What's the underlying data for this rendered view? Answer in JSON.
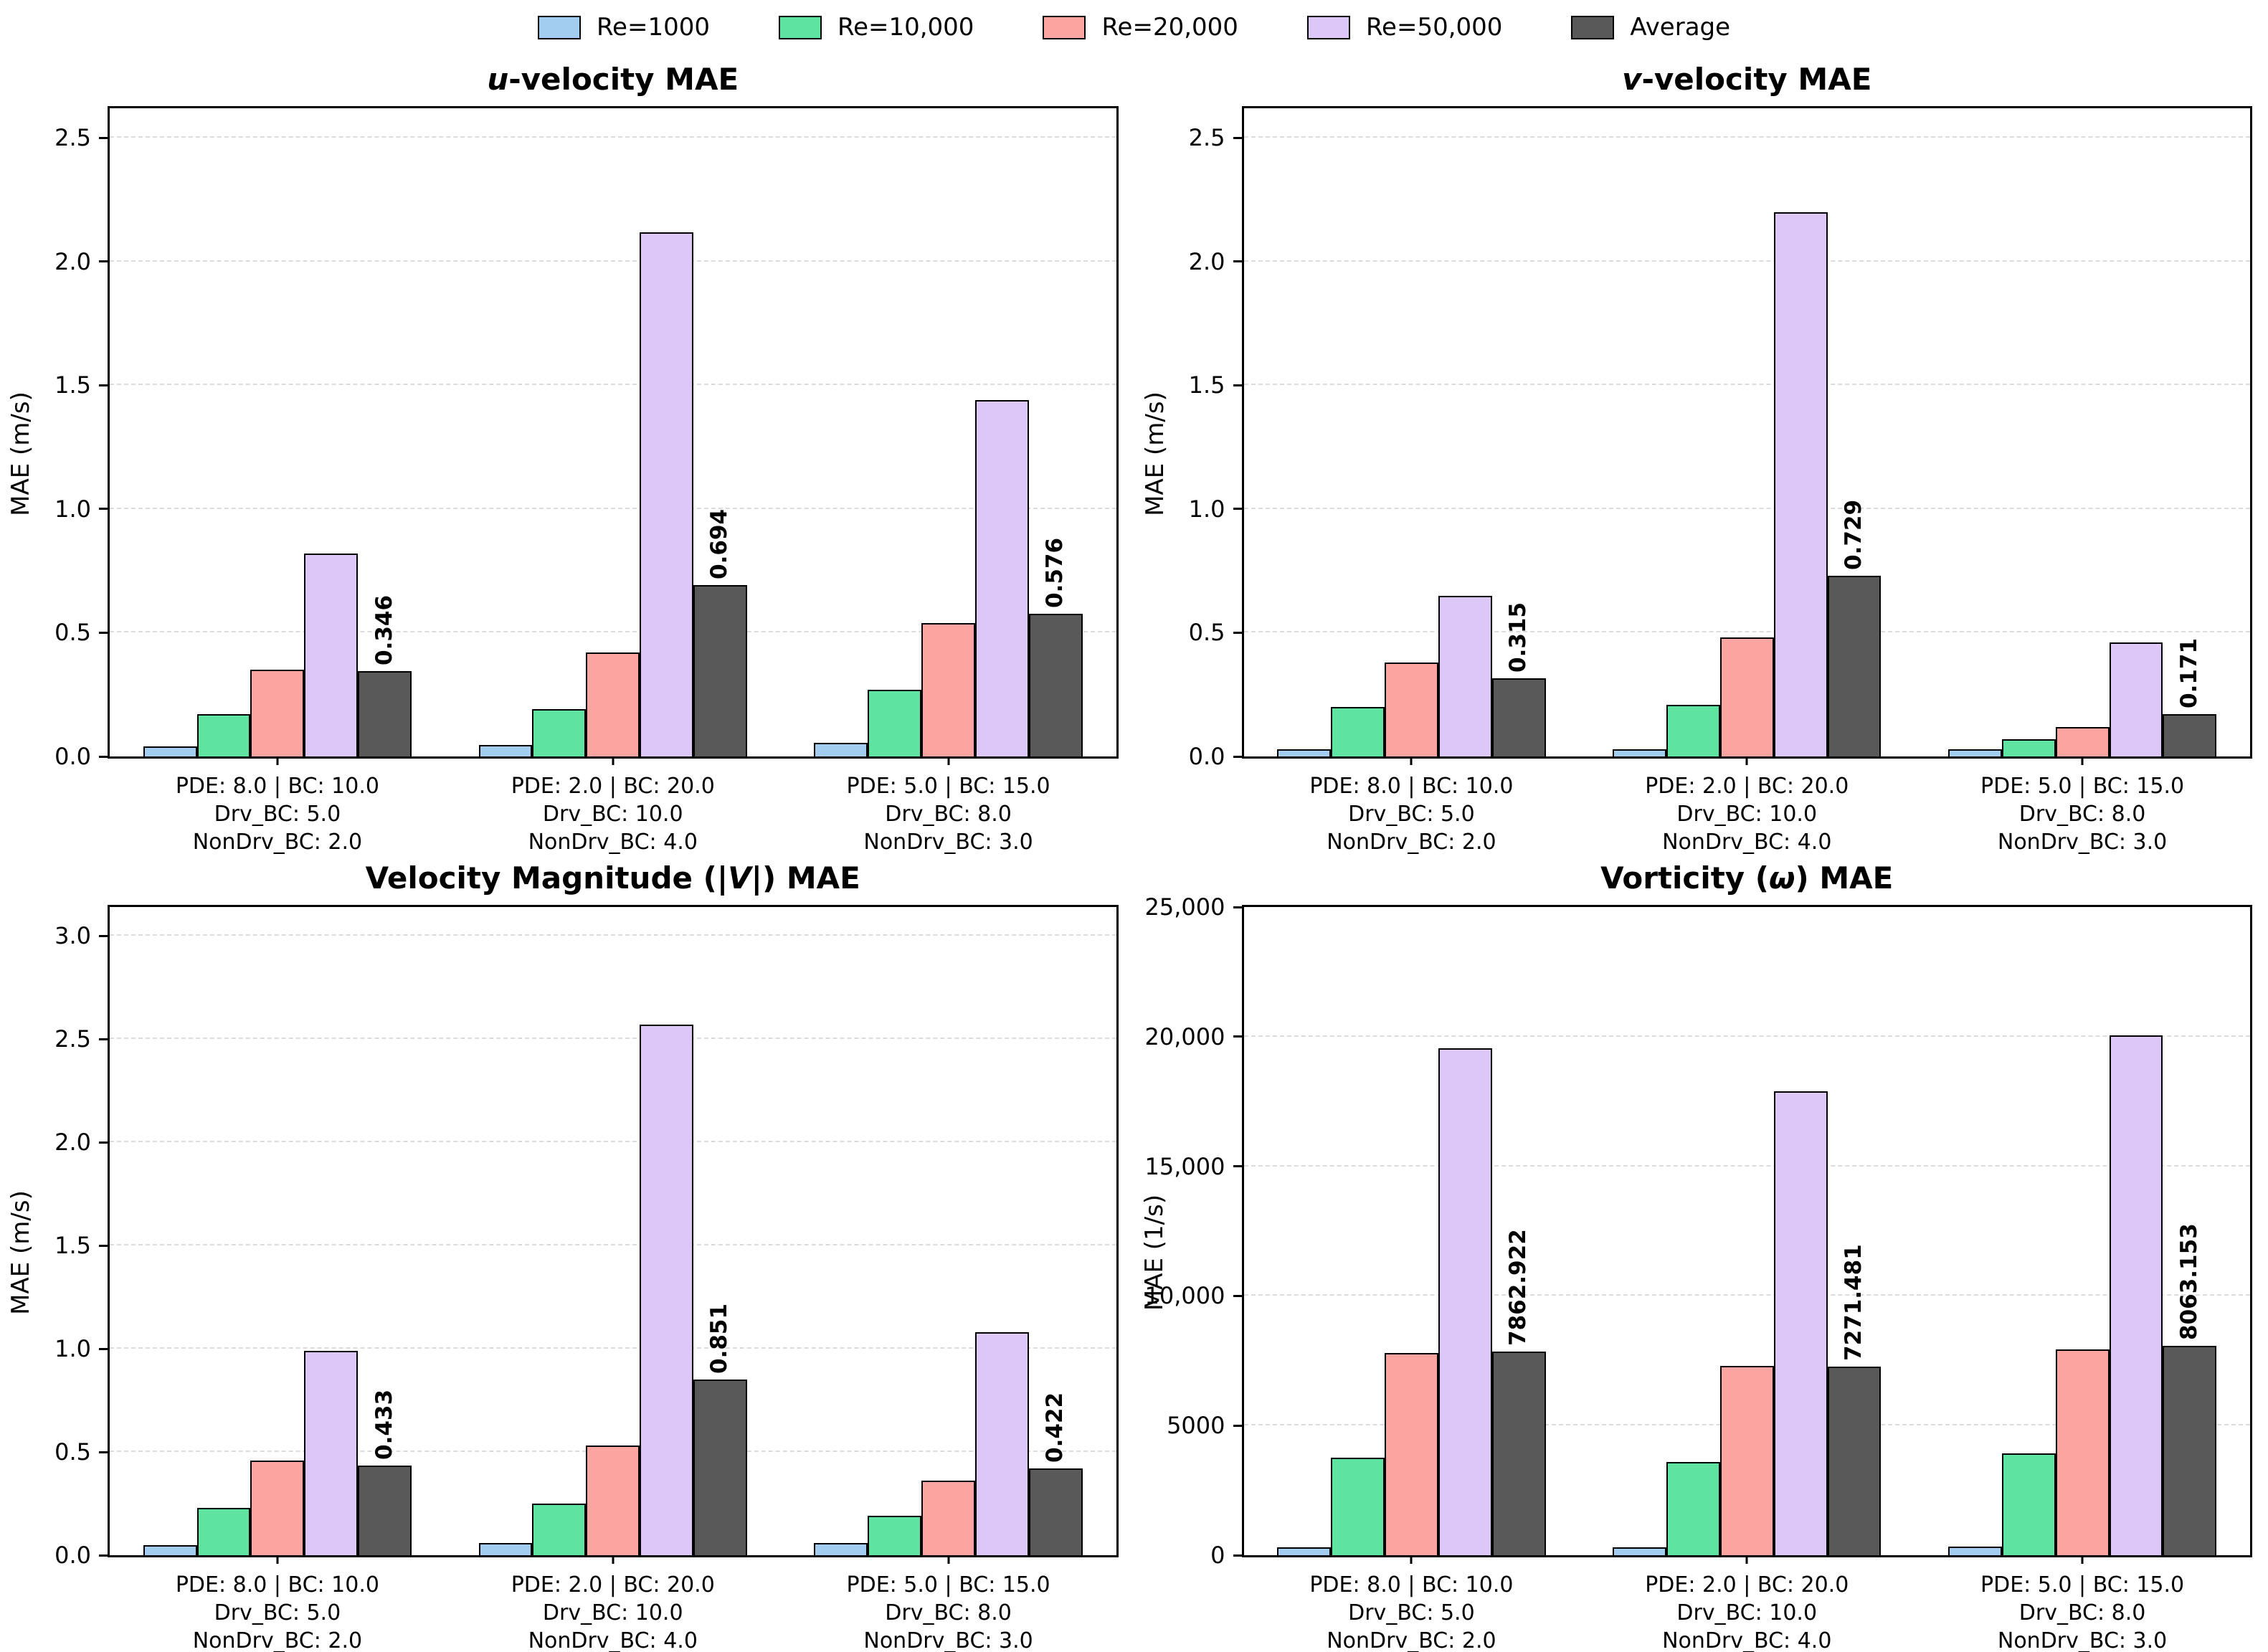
{
  "legend": {
    "items": [
      {
        "label": "Re=1000",
        "color": "#a3cdf0"
      },
      {
        "label": "Re=10,000",
        "color": "#5ee3a0"
      },
      {
        "label": "Re=20,000",
        "color": "#fca5a0"
      },
      {
        "label": "Re=50,000",
        "color": "#ddc7f8"
      },
      {
        "label": "Average",
        "color": "#595959"
      }
    ]
  },
  "style_colors": {
    "bar_edge": "#000000",
    "grid": "#dcdcdc",
    "spine": "#000000"
  },
  "chart_data": [
    {
      "type": "bar",
      "id": "u-velocity-mae",
      "title_segments": [
        {
          "text": "u",
          "italic": true
        },
        {
          "text": "-velocity MAE",
          "italic": false
        }
      ],
      "ylabel": "MAE (m/s)",
      "ylim": [
        0,
        2.62
      ],
      "yticks": [
        {
          "v": 0.0,
          "label": "0.0"
        },
        {
          "v": 0.5,
          "label": "0.5"
        },
        {
          "v": 1.0,
          "label": "1.0"
        },
        {
          "v": 1.5,
          "label": "1.5"
        },
        {
          "v": 2.0,
          "label": "2.0"
        },
        {
          "v": 2.5,
          "label": "2.5"
        }
      ],
      "categories": [
        [
          "PDE: 8.0 | BC: 10.0",
          "Drv_BC: 5.0",
          "NonDrv_BC: 2.0"
        ],
        [
          "PDE: 2.0 | BC: 20.0",
          "Drv_BC: 10.0",
          "NonDrv_BC: 4.0"
        ],
        [
          "PDE: 5.0 | BC: 15.0",
          "Drv_BC: 8.0",
          "NonDrv_BC: 3.0"
        ]
      ],
      "series": [
        {
          "name": "Re=1000",
          "values": [
            0.04,
            0.046,
            0.055
          ]
        },
        {
          "name": "Re=10,000",
          "values": [
            0.17,
            0.19,
            0.27
          ]
        },
        {
          "name": "Re=20,000",
          "values": [
            0.35,
            0.42,
            0.54
          ]
        },
        {
          "name": "Re=50,000",
          "values": [
            0.82,
            2.12,
            1.44
          ]
        },
        {
          "name": "Average",
          "values": [
            0.346,
            0.694,
            0.576
          ],
          "labels": [
            "0.346",
            "0.694",
            "0.576"
          ]
        }
      ]
    },
    {
      "type": "bar",
      "id": "v-velocity-mae",
      "title_segments": [
        {
          "text": "v",
          "italic": true
        },
        {
          "text": "-velocity MAE",
          "italic": false
        }
      ],
      "ylabel": "MAE (m/s)",
      "ylim": [
        0,
        2.62
      ],
      "yticks": [
        {
          "v": 0.0,
          "label": "0.0"
        },
        {
          "v": 0.5,
          "label": "0.5"
        },
        {
          "v": 1.0,
          "label": "1.0"
        },
        {
          "v": 1.5,
          "label": "1.5"
        },
        {
          "v": 2.0,
          "label": "2.0"
        },
        {
          "v": 2.5,
          "label": "2.5"
        }
      ],
      "categories": [
        [
          "PDE: 8.0 | BC: 10.0",
          "Drv_BC: 5.0",
          "NonDrv_BC: 2.0"
        ],
        [
          "PDE: 2.0 | BC: 20.0",
          "Drv_BC: 10.0",
          "NonDrv_BC: 4.0"
        ],
        [
          "PDE: 5.0 | BC: 15.0",
          "Drv_BC: 8.0",
          "NonDrv_BC: 3.0"
        ]
      ],
      "series": [
        {
          "name": "Re=1000",
          "values": [
            0.03,
            0.03,
            0.03
          ]
        },
        {
          "name": "Re=10,000",
          "values": [
            0.2,
            0.21,
            0.07
          ]
        },
        {
          "name": "Re=20,000",
          "values": [
            0.38,
            0.48,
            0.12
          ]
        },
        {
          "name": "Re=50,000",
          "values": [
            0.65,
            2.2,
            0.46
          ]
        },
        {
          "name": "Average",
          "values": [
            0.315,
            0.729,
            0.171
          ],
          "labels": [
            "0.315",
            "0.729",
            "0.171"
          ]
        }
      ]
    },
    {
      "type": "bar",
      "id": "velocity-magnitude-mae",
      "title_segments": [
        {
          "text": "Velocity Magnitude (|",
          "italic": false
        },
        {
          "text": "V",
          "italic": true
        },
        {
          "text": "|) MAE",
          "italic": false
        }
      ],
      "ylabel": "MAE (m/s)",
      "ylim": [
        0,
        3.14
      ],
      "yticks": [
        {
          "v": 0.0,
          "label": "0.0"
        },
        {
          "v": 0.5,
          "label": "0.5"
        },
        {
          "v": 1.0,
          "label": "1.0"
        },
        {
          "v": 1.5,
          "label": "1.5"
        },
        {
          "v": 2.0,
          "label": "2.0"
        },
        {
          "v": 2.5,
          "label": "2.5"
        },
        {
          "v": 3.0,
          "label": "3.0"
        }
      ],
      "categories": [
        [
          "PDE: 8.0 | BC: 10.0",
          "Drv_BC: 5.0",
          "NonDrv_BC: 2.0"
        ],
        [
          "PDE: 2.0 | BC: 20.0",
          "Drv_BC: 10.0",
          "NonDrv_BC: 4.0"
        ],
        [
          "PDE: 5.0 | BC: 15.0",
          "Drv_BC: 8.0",
          "NonDrv_BC: 3.0"
        ]
      ],
      "series": [
        {
          "name": "Re=1000",
          "values": [
            0.05,
            0.06,
            0.06
          ]
        },
        {
          "name": "Re=10,000",
          "values": [
            0.23,
            0.25,
            0.19
          ]
        },
        {
          "name": "Re=20,000",
          "values": [
            0.46,
            0.53,
            0.36
          ]
        },
        {
          "name": "Re=50,000",
          "values": [
            0.99,
            2.57,
            1.08
          ]
        },
        {
          "name": "Average",
          "values": [
            0.433,
            0.851,
            0.422
          ],
          "labels": [
            "0.433",
            "0.851",
            "0.422"
          ]
        }
      ]
    },
    {
      "type": "bar",
      "id": "vorticity-mae",
      "title_segments": [
        {
          "text": "Vorticity (",
          "italic": false
        },
        {
          "text": "ω",
          "italic": true
        },
        {
          "text": ") MAE",
          "italic": false
        }
      ],
      "ylabel": "MAE (1/s)",
      "ylim": [
        0,
        25000
      ],
      "yticks": [
        {
          "v": 0,
          "label": "0"
        },
        {
          "v": 5000,
          "label": "5000"
        },
        {
          "v": 10000,
          "label": "10,000"
        },
        {
          "v": 15000,
          "label": "15,000"
        },
        {
          "v": 20000,
          "label": "20,000"
        },
        {
          "v": 25000,
          "label": "25,000"
        }
      ],
      "categories": [
        [
          "PDE: 8.0 | BC: 10.0",
          "Drv_BC: 5.0",
          "NonDrv_BC: 2.0"
        ],
        [
          "PDE: 2.0 | BC: 20.0",
          "Drv_BC: 10.0",
          "NonDrv_BC: 4.0"
        ],
        [
          "PDE: 5.0 | BC: 15.0",
          "Drv_BC: 8.0",
          "NonDrv_BC: 3.0"
        ]
      ],
      "series": [
        {
          "name": "Re=1000",
          "values": [
            300,
            300,
            320
          ]
        },
        {
          "name": "Re=10,000",
          "values": [
            3750,
            3600,
            3930
          ]
        },
        {
          "name": "Re=20,000",
          "values": [
            7800,
            7300,
            7950
          ]
        },
        {
          "name": "Re=50,000",
          "values": [
            19550,
            17890,
            20050
          ]
        },
        {
          "name": "Average",
          "values": [
            7862.922,
            7271.481,
            8063.153
          ],
          "labels": [
            "7862.922",
            "7271.481",
            "8063.153"
          ]
        }
      ]
    }
  ]
}
